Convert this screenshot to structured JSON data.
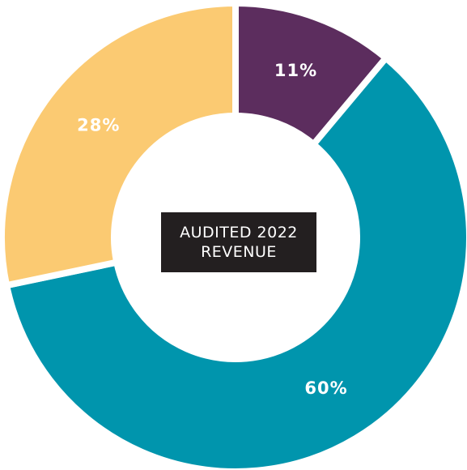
{
  "chart_data": {
    "type": "donut",
    "title": "AUDITED 2022 REVENUE",
    "values": [
      11,
      60,
      28
    ],
    "value_labels": [
      "11%",
      "60%",
      "28%"
    ],
    "colors": [
      "#5c2d5e",
      "#0095ad",
      "#fbca72"
    ]
  }
}
